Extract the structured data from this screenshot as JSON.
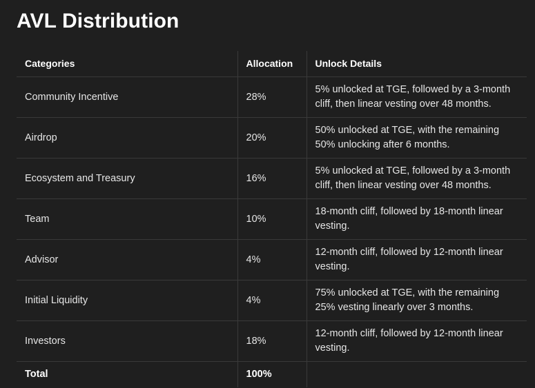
{
  "title": "AVL Distribution",
  "table": {
    "headers": [
      "Categories",
      "Allocation",
      "Unlock Details"
    ],
    "rows": [
      {
        "category": "Community Incentive",
        "allocation": "28%",
        "details": "5% unlocked at TGE, followed by a 3-month cliff, then linear vesting over 48 months."
      },
      {
        "category": "Airdrop",
        "allocation": "20%",
        "details": "50% unlocked at TGE, with the remaining 50% unlocking after 6 months."
      },
      {
        "category": "Ecosystem and Treasury",
        "allocation": "16%",
        "details": "5% unlocked at TGE, followed by a 3-month cliff, then linear vesting over 48 months."
      },
      {
        "category": "Team",
        "allocation": "10%",
        "details": "18-month cliff, followed by 18-month linear vesting."
      },
      {
        "category": "Advisor",
        "allocation": "4%",
        "details": "12-month cliff, followed by 12-month linear vesting."
      },
      {
        "category": "Initial Liquidity",
        "allocation": "4%",
        "details": "75% unlocked at TGE, with the remaining 25% vesting linearly over 3 months."
      },
      {
        "category": "Investors",
        "allocation": "18%",
        "details": "12-month cliff, followed by 12-month linear vesting."
      }
    ],
    "total": {
      "category": "Total",
      "allocation": "100%",
      "details": ""
    }
  }
}
